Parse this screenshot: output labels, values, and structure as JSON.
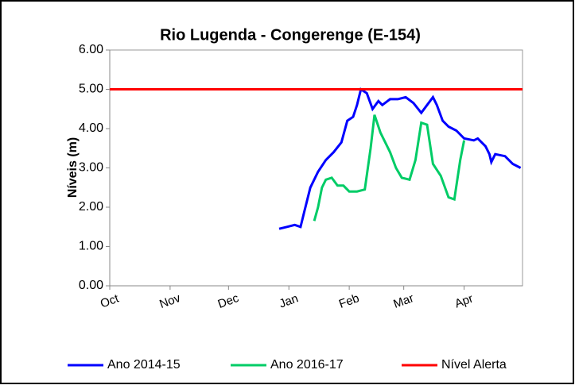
{
  "chart_data": {
    "type": "line",
    "title": "Rio Lugenda - Congerenge (E-154)",
    "y_label": "Níveis (m)",
    "xlim": [
      0,
      212
    ],
    "xticks": [
      {
        "value": 0,
        "label": "Oct"
      },
      {
        "value": 31,
        "label": "Nov"
      },
      {
        "value": 61,
        "label": "Dec"
      },
      {
        "value": 92,
        "label": "Jan"
      },
      {
        "value": 123,
        "label": "Feb"
      },
      {
        "value": 151,
        "label": "Mar"
      },
      {
        "value": 182,
        "label": "Apr"
      }
    ],
    "ylim": [
      0,
      6
    ],
    "yticks": [
      {
        "value": 0,
        "label": "0.00"
      },
      {
        "value": 1,
        "label": "1.00"
      },
      {
        "value": 2,
        "label": "2.00"
      },
      {
        "value": 3,
        "label": "3.00"
      },
      {
        "value": 4,
        "label": "4.00"
      },
      {
        "value": 5,
        "label": "5.00"
      },
      {
        "value": 6,
        "label": "6.00"
      }
    ],
    "legend": "bottom",
    "series": [
      {
        "name": "Ano 2014-15",
        "color": "#0000ff",
        "x": [
          87,
          91,
          95,
          98,
          100,
          103,
          107,
          111,
          115,
          119,
          122,
          125,
          127,
          129,
          132,
          135,
          138,
          140,
          144,
          148,
          152,
          156,
          160,
          163,
          166,
          168,
          171,
          174,
          178,
          182,
          187,
          189,
          193,
          195,
          196,
          198,
          203,
          207,
          211
        ],
        "values": [
          1.45,
          1.5,
          1.55,
          1.5,
          1.9,
          2.5,
          2.9,
          3.2,
          3.4,
          3.65,
          4.2,
          4.3,
          4.6,
          5.0,
          4.9,
          4.5,
          4.7,
          4.6,
          4.75,
          4.75,
          4.8,
          4.65,
          4.4,
          4.6,
          4.8,
          4.6,
          4.2,
          4.05,
          3.95,
          3.75,
          3.7,
          3.75,
          3.55,
          3.35,
          3.15,
          3.35,
          3.3,
          3.1,
          3.0
        ]
      },
      {
        "name": "Ano 2016-17",
        "color": "#00cc66",
        "x": [
          105,
          107,
          109,
          111,
          114,
          117,
          120,
          123,
          127,
          131,
          134,
          136,
          139,
          144,
          147,
          150,
          154,
          157,
          160,
          163,
          166,
          170,
          174,
          177,
          180,
          182
        ],
        "values": [
          1.65,
          2.0,
          2.5,
          2.7,
          2.75,
          2.55,
          2.55,
          2.4,
          2.4,
          2.45,
          3.5,
          4.35,
          3.9,
          3.4,
          3.0,
          2.75,
          2.7,
          3.2,
          4.15,
          4.1,
          3.1,
          2.8,
          2.25,
          2.2,
          3.2,
          3.7
        ]
      },
      {
        "name": "Nível Alerta",
        "color": "#ff0000",
        "x": [
          0,
          212
        ],
        "values": [
          5,
          5
        ]
      }
    ]
  }
}
